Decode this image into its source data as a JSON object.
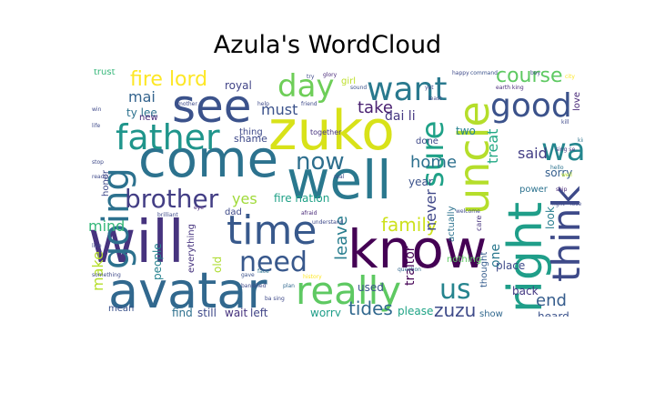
{
  "title": "Azula's WordCloud",
  "palette": [
    "#440154",
    "#482878",
    "#3e4989",
    "#31688e",
    "#26828e",
    "#1f9e89",
    "#35b779",
    "#6ece58",
    "#b5de2b",
    "#fde725"
  ],
  "words": [
    {
      "text": "zuko",
      "color": "#d8e219"
    },
    {
      "text": "know",
      "color": "#440154"
    },
    {
      "text": "will",
      "color": "#46337e"
    },
    {
      "text": "well",
      "color": "#2a788e"
    },
    {
      "text": "come",
      "color": "#2c728e"
    },
    {
      "text": "avatar",
      "color": "#31688e"
    },
    {
      "text": "see",
      "color": "#3b528b"
    },
    {
      "text": "uncle",
      "color": "#b5de2b"
    },
    {
      "text": "right",
      "color": "#1f9e89"
    },
    {
      "text": "time",
      "color": "#38598c"
    },
    {
      "text": "think",
      "color": "#3e4a89"
    },
    {
      "text": "really",
      "color": "#5ec962"
    },
    {
      "text": "father",
      "color": "#1f958b"
    },
    {
      "text": "going",
      "color": "#2c718e"
    },
    {
      "text": "want",
      "color": "#29798e"
    },
    {
      "text": "good",
      "color": "#3b528b"
    },
    {
      "text": "way",
      "color": "#24868e"
    },
    {
      "text": "day",
      "color": "#6ece58"
    },
    {
      "text": "sure",
      "color": "#1fa187"
    },
    {
      "text": "brother",
      "color": "#433e85"
    },
    {
      "text": "need",
      "color": "#38588c"
    },
    {
      "text": "now",
      "color": "#2e6f8e"
    },
    {
      "text": "us",
      "color": "#25848e"
    },
    {
      "text": "fire lord",
      "color": "#fde725"
    },
    {
      "text": "course",
      "color": "#5ec962"
    },
    {
      "text": "family",
      "color": "#cde11d"
    },
    {
      "text": "zuzu",
      "color": "#3e4a89"
    },
    {
      "text": "tides",
      "color": "#31688e"
    },
    {
      "text": "mai",
      "color": "#33638d"
    },
    {
      "text": "take",
      "color": "#481f70"
    },
    {
      "text": "home",
      "color": "#2d708e"
    },
    {
      "text": "said",
      "color": "#433e85"
    },
    {
      "text": "end",
      "color": "#365d8d"
    },
    {
      "text": "never",
      "color": "#3f4788"
    },
    {
      "text": "treat",
      "color": "#22a884"
    },
    {
      "text": "leave",
      "color": "#287d8e"
    },
    {
      "text": "must",
      "color": "#3b528b"
    },
    {
      "text": "mind",
      "color": "#35b779"
    },
    {
      "text": "make",
      "color": "#b5de2b"
    },
    {
      "text": "yes",
      "color": "#a0da39"
    },
    {
      "text": "dai li",
      "color": "#453882"
    },
    {
      "text": "ty lee",
      "color": "#2c718e"
    },
    {
      "text": "two",
      "color": "#26828e"
    },
    {
      "text": "sorry",
      "color": "#355f8d"
    },
    {
      "text": "look",
      "color": "#287d8e"
    },
    {
      "text": "back",
      "color": "#443983"
    },
    {
      "text": "place",
      "color": "#3e4989"
    },
    {
      "text": "show",
      "color": "#31688e"
    },
    {
      "text": "heard",
      "color": "#3b528b"
    },
    {
      "text": "please",
      "color": "#20a486"
    },
    {
      "text": "worry",
      "color": "#1f9e89"
    },
    {
      "text": "find",
      "color": "#2d708e"
    },
    {
      "text": "still",
      "color": "#3e4989"
    },
    {
      "text": "wait",
      "color": "#46337e"
    },
    {
      "text": "left",
      "color": "#414487"
    },
    {
      "text": "mean",
      "color": "#3b528b"
    },
    {
      "text": "fire nation",
      "color": "#1fa187"
    },
    {
      "text": "shame",
      "color": "#3e4989"
    },
    {
      "text": "done",
      "color": "#3e4989"
    },
    {
      "text": "traitor",
      "color": "#440154"
    },
    {
      "text": "one",
      "color": "#2a788e"
    },
    {
      "text": "thought",
      "color": "#365d8d"
    },
    {
      "text": "year",
      "color": "#3b528b"
    },
    {
      "text": "actually",
      "color": "#2c728e"
    },
    {
      "text": "used",
      "color": "#3b528b"
    },
    {
      "text": "nothing",
      "color": "#5ec962"
    },
    {
      "text": "dad",
      "color": "#3e4a89"
    },
    {
      "text": "new",
      "color": "#482878"
    },
    {
      "text": "old",
      "color": "#addc30"
    },
    {
      "text": "people",
      "color": "#26828e"
    },
    {
      "text": "everything",
      "color": "#46337e"
    },
    {
      "text": "royal",
      "color": "#414487"
    },
    {
      "text": "trust",
      "color": "#35b779"
    },
    {
      "text": "girl",
      "color": "#bddf26"
    },
    {
      "text": "together",
      "color": "#46337e"
    },
    {
      "text": "honor",
      "color": "#3e4989"
    },
    {
      "text": "power",
      "color": "#2c728e"
    },
    {
      "text": "love",
      "color": "#482878"
    },
    {
      "text": "care",
      "color": "#46337e"
    },
    {
      "text": "thing",
      "color": "#3e4989"
    },
    {
      "text": "glory",
      "color": "#482878"
    },
    {
      "text": "happy",
      "color": "#3e4989"
    },
    {
      "text": "earth king",
      "color": "#482878"
    },
    {
      "text": "command",
      "color": "#3b528b"
    },
    {
      "text": "city",
      "color": "#fde725"
    },
    {
      "text": "king",
      "color": "#2c728e"
    },
    {
      "text": "afraid",
      "color": "#482878"
    },
    {
      "text": "understand",
      "color": "#3e4989"
    },
    {
      "text": "brilliant",
      "color": "#3e4989"
    },
    {
      "text": "face",
      "color": "#2c728e"
    },
    {
      "text": "question",
      "color": "#31688e"
    },
    {
      "text": "history",
      "color": "#fde725"
    },
    {
      "text": "banished",
      "color": "#3e4989"
    },
    {
      "text": "plan",
      "color": "#31688e"
    },
    {
      "text": "gave",
      "color": "#3b528b"
    },
    {
      "text": "ba sing",
      "color": "#3e4989"
    },
    {
      "text": "sing se",
      "color": "#443983"
    },
    {
      "text": "hello",
      "color": "#2c728e"
    },
    {
      "text": "well",
      "color": "#b5de2b"
    },
    {
      "text": "ship",
      "color": "#482878"
    },
    {
      "text": "fight",
      "color": "#3e4989"
    },
    {
      "text": "welcome",
      "color": "#3e4989"
    },
    {
      "text": "something",
      "color": "#3e4989"
    },
    {
      "text": "eye",
      "color": "#482878"
    },
    {
      "text": "sound",
      "color": "#3b528b"
    },
    {
      "text": "win",
      "color": "#3e4989"
    },
    {
      "text": "life",
      "color": "#3e4989"
    },
    {
      "text": "mother",
      "color": "#3e4989"
    },
    {
      "text": "live",
      "color": "#3e4989"
    },
    {
      "text": "friend",
      "color": "#3e4989"
    },
    {
      "text": "kill",
      "color": "#3e4989"
    },
    {
      "text": "lose",
      "color": "#3e4989"
    },
    {
      "text": "ready",
      "color": "#3e4989"
    },
    {
      "text": "try",
      "color": "#3e4989"
    },
    {
      "text": "boy",
      "color": "#3e4989"
    },
    {
      "text": "stop",
      "color": "#3e4989"
    },
    {
      "text": "real",
      "color": "#3e4989"
    },
    {
      "text": "yet",
      "color": "#3e4989"
    },
    {
      "text": "least",
      "color": "#3e4989"
    },
    {
      "text": "help",
      "color": "#3e4989"
    }
  ]
}
